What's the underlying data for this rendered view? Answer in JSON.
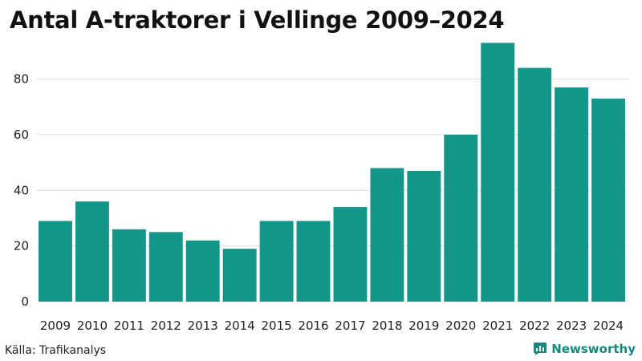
{
  "header": {
    "title": "Antal A-traktorer i Vellinge 2009–2024"
  },
  "footer": {
    "source": "Källa: Trafikanalys",
    "brand": "Newsworthy",
    "brand_icon": "newsworthy-logo-icon"
  },
  "colors": {
    "bar": "#14968a",
    "brand": "#14897c",
    "grid": "#dcdcdc"
  },
  "chart_data": {
    "type": "bar",
    "title": "Antal A-traktorer i Vellinge 2009–2024",
    "xlabel": "",
    "ylabel": "",
    "categories": [
      "2009",
      "2010",
      "2011",
      "2012",
      "2013",
      "2014",
      "2015",
      "2016",
      "2017",
      "2018",
      "2019",
      "2020",
      "2021",
      "2022",
      "2023",
      "2024"
    ],
    "values": [
      29,
      36,
      26,
      25,
      22,
      19,
      29,
      29,
      34,
      48,
      47,
      60,
      93,
      84,
      77,
      73
    ],
    "ylim": [
      0,
      96
    ],
    "yticks": [
      0,
      20,
      40,
      60,
      80
    ],
    "grid": true,
    "legend": "none"
  }
}
